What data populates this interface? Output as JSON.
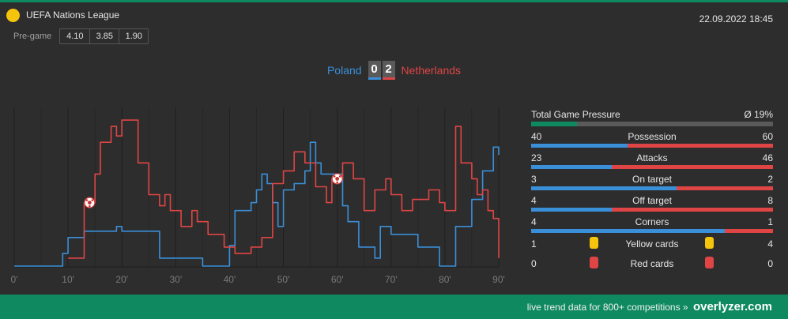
{
  "header": {
    "league_name": "UEFA Nations League",
    "datetime": "22.09.2022 18:45",
    "pregame_label": "Pre-game",
    "odds": [
      "4.10",
      "3.85",
      "1.90"
    ],
    "league_icon_color": "#f5c40d"
  },
  "match": {
    "home": "Poland",
    "away": "Netherlands",
    "home_score": "0",
    "away_score": "2",
    "home_color": "#3a8fd9",
    "away_color": "#e04545"
  },
  "chart_data": {
    "type": "line",
    "x_ticks": [
      "0'",
      "10'",
      "20'",
      "30'",
      "40'",
      "50'",
      "60'",
      "70'",
      "80'",
      "90'"
    ],
    "xlim": [
      0,
      90
    ],
    "ylim": [
      0,
      100
    ],
    "grid": true,
    "series": [
      {
        "name": "Poland",
        "color": "#3a8fd9",
        "points": [
          [
            0,
            0
          ],
          [
            9,
            0
          ],
          [
            9,
            8
          ],
          [
            10,
            8
          ],
          [
            10,
            18
          ],
          [
            13,
            18
          ],
          [
            13,
            22
          ],
          [
            19,
            22
          ],
          [
            19,
            25
          ],
          [
            20,
            25
          ],
          [
            20,
            22
          ],
          [
            27,
            22
          ],
          [
            27,
            5
          ],
          [
            35,
            5
          ],
          [
            35,
            0
          ],
          [
            40,
            0
          ],
          [
            40,
            13
          ],
          [
            41,
            13
          ],
          [
            41,
            35
          ],
          [
            44,
            35
          ],
          [
            44,
            40
          ],
          [
            45,
            40
          ],
          [
            45,
            48
          ],
          [
            46,
            48
          ],
          [
            46,
            58
          ],
          [
            47,
            58
          ],
          [
            47,
            52
          ],
          [
            48,
            52
          ],
          [
            48,
            40
          ],
          [
            49,
            40
          ],
          [
            49,
            25
          ],
          [
            50,
            25
          ],
          [
            50,
            48
          ],
          [
            52,
            48
          ],
          [
            52,
            52
          ],
          [
            54,
            52
          ],
          [
            54,
            60
          ],
          [
            55,
            60
          ],
          [
            55,
            78
          ],
          [
            56,
            78
          ],
          [
            56,
            65
          ],
          [
            57,
            65
          ],
          [
            57,
            58
          ],
          [
            61,
            58
          ],
          [
            61,
            38
          ],
          [
            62,
            38
          ],
          [
            62,
            28
          ],
          [
            64,
            28
          ],
          [
            64,
            12
          ],
          [
            67,
            12
          ],
          [
            67,
            5
          ],
          [
            68,
            5
          ],
          [
            68,
            25
          ],
          [
            70,
            25
          ],
          [
            70,
            20
          ],
          [
            75,
            20
          ],
          [
            75,
            12
          ],
          [
            79,
            12
          ],
          [
            79,
            0
          ],
          [
            82,
            0
          ],
          [
            82,
            25
          ],
          [
            85,
            25
          ],
          [
            85,
            42
          ],
          [
            87,
            42
          ],
          [
            87,
            60
          ],
          [
            89,
            60
          ],
          [
            89,
            75
          ],
          [
            90,
            75
          ],
          [
            90,
            70
          ]
        ]
      },
      {
        "name": "Netherlands",
        "color": "#e04545",
        "points": [
          [
            10,
            5
          ],
          [
            13,
            5
          ],
          [
            13,
            40
          ],
          [
            15,
            40
          ],
          [
            15,
            58
          ],
          [
            16,
            58
          ],
          [
            16,
            78
          ],
          [
            18,
            78
          ],
          [
            18,
            88
          ],
          [
            19,
            88
          ],
          [
            19,
            82
          ],
          [
            20,
            82
          ],
          [
            20,
            92
          ],
          [
            23,
            92
          ],
          [
            23,
            65
          ],
          [
            25,
            65
          ],
          [
            25,
            45
          ],
          [
            27,
            45
          ],
          [
            27,
            38
          ],
          [
            28,
            38
          ],
          [
            28,
            45
          ],
          [
            29,
            45
          ],
          [
            29,
            35
          ],
          [
            31,
            35
          ],
          [
            31,
            25
          ],
          [
            33,
            25
          ],
          [
            33,
            35
          ],
          [
            34,
            35
          ],
          [
            34,
            28
          ],
          [
            36,
            28
          ],
          [
            36,
            20
          ],
          [
            39,
            20
          ],
          [
            39,
            12
          ],
          [
            41,
            12
          ],
          [
            41,
            8
          ],
          [
            44,
            8
          ],
          [
            44,
            12
          ],
          [
            46,
            12
          ],
          [
            46,
            18
          ],
          [
            48,
            18
          ],
          [
            48,
            52
          ],
          [
            50,
            52
          ],
          [
            50,
            60
          ],
          [
            52,
            60
          ],
          [
            52,
            72
          ],
          [
            54,
            72
          ],
          [
            54,
            65
          ],
          [
            56,
            65
          ],
          [
            56,
            50
          ],
          [
            58,
            50
          ],
          [
            58,
            40
          ],
          [
            59,
            40
          ],
          [
            59,
            55
          ],
          [
            61,
            55
          ],
          [
            61,
            65
          ],
          [
            63,
            65
          ],
          [
            63,
            55
          ],
          [
            65,
            55
          ],
          [
            65,
            35
          ],
          [
            67,
            35
          ],
          [
            67,
            48
          ],
          [
            69,
            48
          ],
          [
            69,
            55
          ],
          [
            70,
            55
          ],
          [
            70,
            45
          ],
          [
            72,
            45
          ],
          [
            72,
            35
          ],
          [
            74,
            35
          ],
          [
            74,
            42
          ],
          [
            77,
            42
          ],
          [
            77,
            48
          ],
          [
            79,
            48
          ],
          [
            79,
            40
          ],
          [
            80,
            40
          ],
          [
            80,
            35
          ],
          [
            82,
            35
          ],
          [
            82,
            88
          ],
          [
            83,
            88
          ],
          [
            83,
            65
          ],
          [
            85,
            65
          ],
          [
            85,
            55
          ],
          [
            86,
            55
          ],
          [
            86,
            45
          ],
          [
            87,
            45
          ],
          [
            87,
            48
          ],
          [
            88,
            48
          ],
          [
            88,
            35
          ],
          [
            89,
            35
          ],
          [
            89,
            30
          ],
          [
            90,
            30
          ],
          [
            90,
            5
          ]
        ]
      }
    ],
    "goals": [
      {
        "team": "Netherlands",
        "minute": 14,
        "value": 40
      },
      {
        "team": "Netherlands",
        "minute": 60,
        "value": 55
      }
    ]
  },
  "stats": {
    "tgp_label": "Total Game Pressure",
    "tgp_value": "Ø 19%",
    "tgp_fraction": 0.19,
    "rows": [
      {
        "label": "Possession",
        "home": "40",
        "away": "60",
        "home_frac": 0.4
      },
      {
        "label": "Attacks",
        "home": "23",
        "away": "46",
        "home_frac": 0.333
      },
      {
        "label": "On target",
        "home": "3",
        "away": "2",
        "home_frac": 0.6
      },
      {
        "label": "Off target",
        "home": "4",
        "away": "8",
        "home_frac": 0.333
      },
      {
        "label": "Corners",
        "home": "4",
        "away": "1",
        "home_frac": 0.8
      }
    ],
    "cards": [
      {
        "label": "Yellow cards",
        "home": "1",
        "away": "4",
        "color": "#f5c40d"
      },
      {
        "label": "Red cards",
        "home": "0",
        "away": "0",
        "color": "#e04545"
      }
    ]
  },
  "footer": {
    "text": "live trend data for 800+ competitions »",
    "brand": "overlyzer.com"
  }
}
